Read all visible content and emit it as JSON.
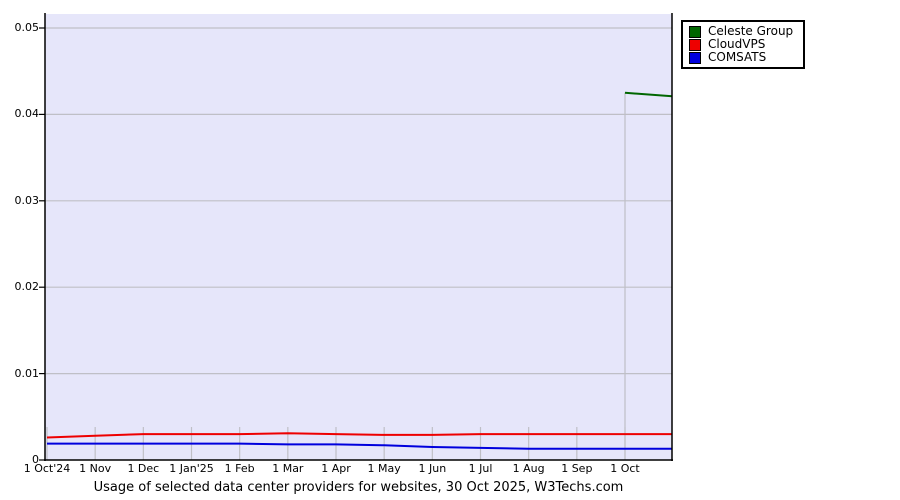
{
  "page": {
    "background": "#ffffff"
  },
  "chart_data": {
    "type": "line",
    "title": "Usage of selected data center providers for websites, 30 Oct 2025, W3Techs.com",
    "source": "W3Techs.com",
    "date_shown": "30 Oct 2025",
    "plot_bg": "#e6e6fa",
    "grid_color": "#bfbfc6",
    "axis_color": "#000000",
    "legend_position": "top-right-outside",
    "grid": "horizontal-on",
    "ylim": [
      0,
      0.0517
    ],
    "y_tick_values": [
      0,
      0.01,
      0.02,
      0.03,
      0.04,
      0.05
    ],
    "y_tick_labels": [
      "0",
      "0.01",
      "0.02",
      "0.03",
      "0.04",
      "0.05"
    ],
    "x_tick_labels": [
      "1 Oct'24",
      "1 Nov",
      "1 Dec",
      "1 Jan'25",
      "1 Feb",
      "1 Mar",
      "1 Apr",
      "1 May",
      "1 Jun",
      "1 Jul",
      "1 Aug",
      "1 Sep",
      "1 Oct"
    ],
    "x_unit": "month-index",
    "x_end_index": 12.98,
    "current_date_line": {
      "x_index": 12,
      "top_value": 0.0425
    },
    "series": [
      {
        "name": "Celeste Group",
        "color": "#006600",
        "x": [
          12,
          12.98
        ],
        "values": [
          0.0425,
          0.0421
        ]
      },
      {
        "name": "CloudVPS",
        "color": "#ee0000",
        "x": [
          0,
          1,
          2,
          3,
          4,
          5,
          6,
          7,
          8,
          9,
          10,
          11,
          12,
          12.98
        ],
        "values": [
          0.0026,
          0.0028,
          0.003,
          0.003,
          0.003,
          0.0031,
          0.003,
          0.0029,
          0.0029,
          0.003,
          0.003,
          0.003,
          0.003,
          0.003
        ]
      },
      {
        "name": "COMSATS",
        "color": "#0000dd",
        "x": [
          0,
          1,
          2,
          3,
          4,
          5,
          6,
          7,
          8,
          9,
          10,
          11,
          12,
          12.98
        ],
        "values": [
          0.0019,
          0.0019,
          0.0019,
          0.0019,
          0.0019,
          0.0018,
          0.0018,
          0.0017,
          0.0015,
          0.0014,
          0.0013,
          0.0013,
          0.0013,
          0.0013
        ]
      }
    ]
  }
}
